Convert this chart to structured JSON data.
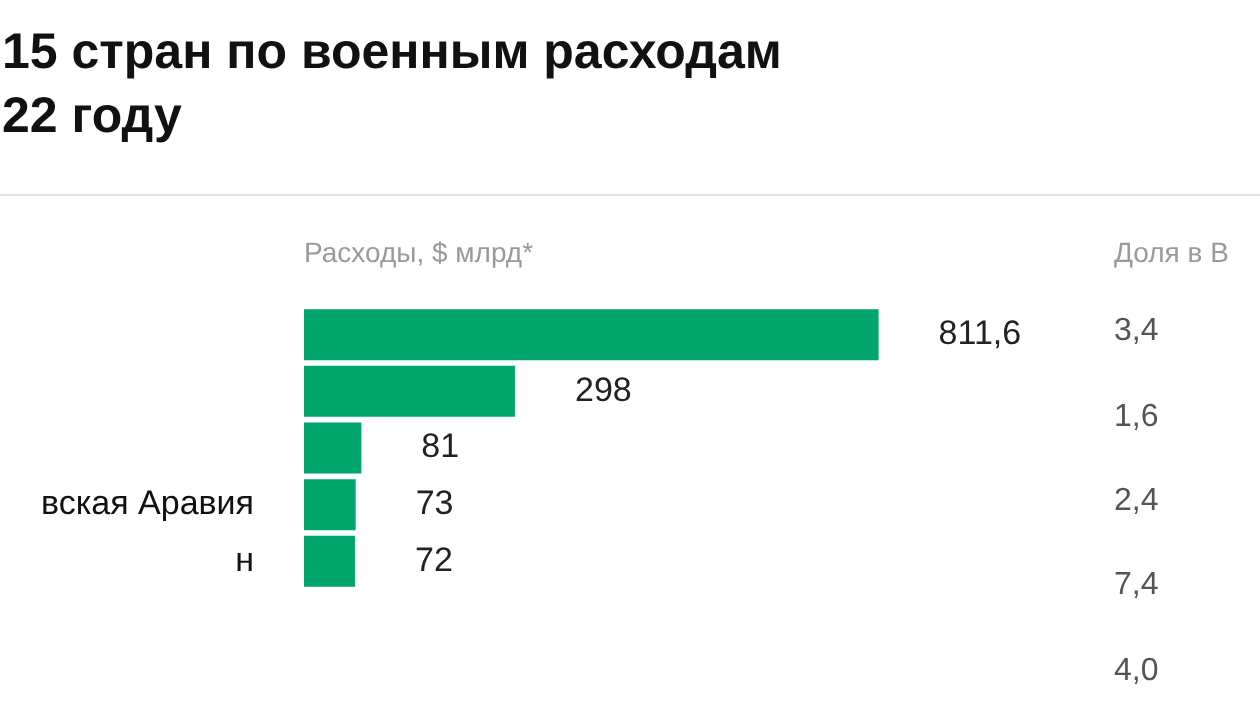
{
  "chart_data": {
    "type": "bar",
    "orientation": "horizontal",
    "title": "15 стран по военным расходам\n22 году",
    "xlabel": "Расходы, $ млрд*",
    "categories": [
      null,
      null,
      null,
      "вская Аравия",
      "н"
    ],
    "values": [
      811.6,
      298,
      81,
      73,
      72
    ],
    "value_labels": [
      "811,6",
      "298",
      "81",
      "73",
      "72"
    ],
    "color": "#00a66b",
    "grid": false,
    "legend": false,
    "tick_labels": "y",
    "annotations": [
      "Доля в В",
      "3,4",
      "1,6",
      "2,4",
      "7,4",
      "4,0"
    ]
  }
}
